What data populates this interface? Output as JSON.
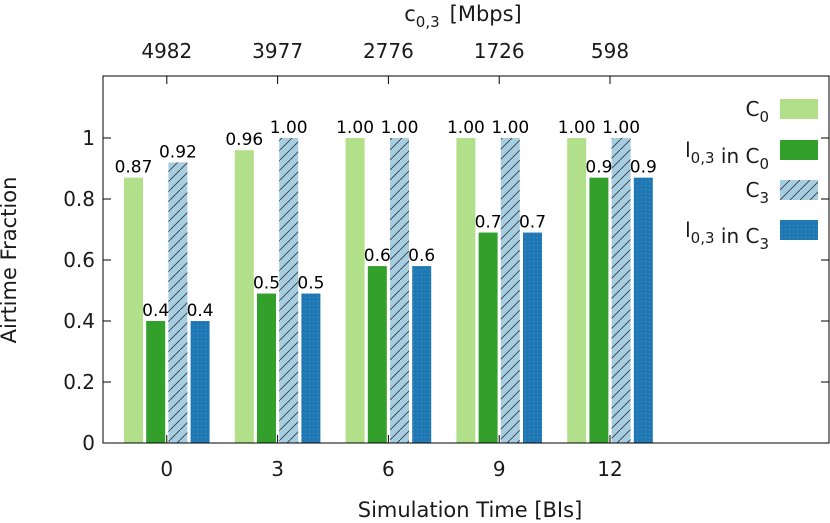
{
  "chart_data": {
    "type": "bar",
    "title": "",
    "xlabel": "Simulation Time [BIs]",
    "ylabel": "Airtime Fraction",
    "x2label_base": "c",
    "x2label_sub": "0,3",
    "x2label_unit": "[Mbps]",
    "categories": [
      "0",
      "3",
      "6",
      "9",
      "12"
    ],
    "top_ticks": [
      "4982",
      "3977",
      "2776",
      "1726",
      "598"
    ],
    "ylim": [
      0,
      1.2
    ],
    "yticks": [
      "0",
      "0.2",
      "0.4",
      "0.6",
      "0.8",
      "1"
    ],
    "ytick_values": [
      0,
      0.2,
      0.4,
      0.6,
      0.8,
      1.0
    ],
    "grid": false,
    "legend_position": "right",
    "series": [
      {
        "legend": [
          {
            "t": "C",
            "s": "0"
          }
        ],
        "values": [
          0.87,
          0.96,
          1.0,
          1.0,
          1.0
        ],
        "labels": [
          "0.87",
          "0.96",
          "1.00",
          "1.00",
          "1.00"
        ],
        "color": "#b2df8a",
        "pattern": "solid"
      },
      {
        "legend": [
          {
            "t": "l",
            "s": "0,3"
          },
          {
            "t": " in "
          },
          {
            "t": "C",
            "s": "0"
          }
        ],
        "values": [
          0.4,
          0.49,
          0.58,
          0.69,
          0.87
        ],
        "labels": [
          "0.4",
          "0.5",
          "0.6",
          "0.7",
          "0.9"
        ],
        "color": "#33a02c",
        "pattern": "solid"
      },
      {
        "legend": [
          {
            "t": "C",
            "s": "3"
          }
        ],
        "values": [
          0.92,
          1.0,
          1.0,
          1.0,
          1.0
        ],
        "labels": [
          "0.92",
          "1.00",
          "1.00",
          "1.00",
          "1.00"
        ],
        "color": "#a6cee3",
        "pattern": "hatch"
      },
      {
        "legend": [
          {
            "t": "l",
            "s": "0,3"
          },
          {
            "t": " in "
          },
          {
            "t": "C",
            "s": "3"
          }
        ],
        "values": [
          0.4,
          0.49,
          0.58,
          0.69,
          0.87
        ],
        "labels": [
          "0.4",
          "0.5",
          "0.6",
          "0.7",
          "0.9"
        ],
        "color": "#1f78b4",
        "pattern": "dots"
      }
    ]
  }
}
